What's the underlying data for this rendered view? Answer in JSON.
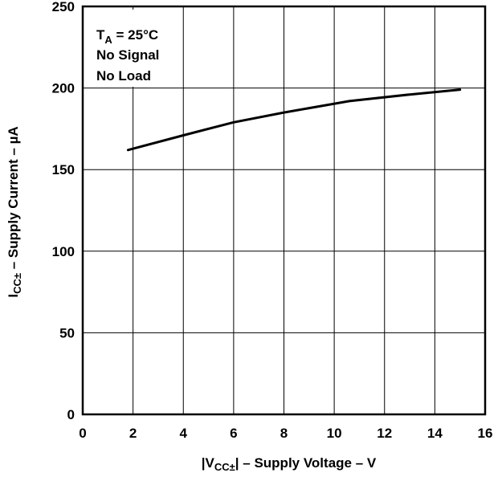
{
  "chart_data": {
    "type": "line",
    "xlabel_parts": [
      "|V",
      "CC±",
      "| – Supply Voltage – V"
    ],
    "ylabel_parts": [
      "I",
      "CC±",
      " – Supply Current – µA"
    ],
    "xlim": [
      0,
      16
    ],
    "ylim": [
      0,
      250
    ],
    "xticks": [
      0,
      2,
      4,
      6,
      8,
      10,
      12,
      14,
      16
    ],
    "yticks": [
      0,
      50,
      100,
      150,
      200,
      250
    ],
    "grid": true,
    "annotations": {
      "ta_prefix": "T",
      "ta_sub": "A",
      "ta_value": " = 25°C",
      "line2": "No Signal",
      "line3": "No Load"
    },
    "series": [
      {
        "x": [
          1.8,
          4,
          6,
          8,
          10.6,
          13,
          15
        ],
        "y": [
          162,
          171,
          179,
          185,
          192,
          196,
          199
        ]
      }
    ]
  }
}
